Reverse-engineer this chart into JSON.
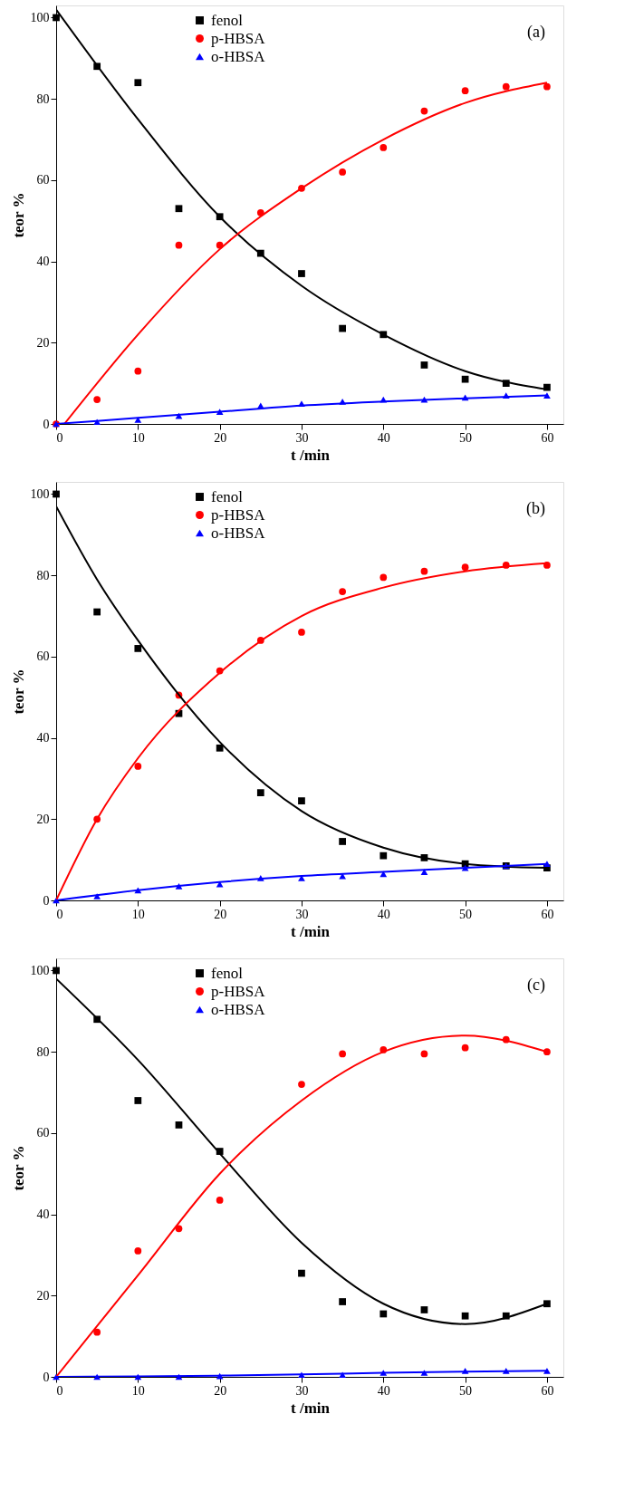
{
  "chart_data": [
    {
      "type": "scatter",
      "xlabel": "t /min",
      "ylabel": "teor  %",
      "annotations": [
        "(a)"
      ],
      "xlim": [
        0,
        62
      ],
      "ylim": [
        0,
        103
      ],
      "xticks": [
        0,
        10,
        20,
        30,
        40,
        50,
        60
      ],
      "yticks": [
        0,
        20,
        40,
        60,
        80,
        100
      ],
      "grid": false,
      "legend": "top",
      "series": [
        {
          "name": "fenol",
          "type": "scatter",
          "marker": "square",
          "color": "#000000",
          "x": [
            0,
            5,
            10,
            15,
            20,
            25,
            30,
            35,
            40,
            45,
            50,
            55,
            60
          ],
          "values": [
            100,
            88,
            84,
            53,
            51,
            42,
            37,
            23.5,
            22,
            14.5,
            11,
            10,
            9
          ]
        },
        {
          "name": "p-HBSA",
          "type": "scatter",
          "marker": "circle",
          "color": "#ff0000",
          "x": [
            0,
            5,
            10,
            15,
            20,
            25,
            30,
            35,
            40,
            45,
            50,
            55,
            60
          ],
          "values": [
            0,
            6,
            13,
            44,
            44,
            52,
            58,
            62,
            68,
            77,
            82,
            83,
            83
          ]
        },
        {
          "name": "o-HBSA",
          "type": "scatter",
          "marker": "triangle",
          "color": "#0000ff",
          "x": [
            0,
            5,
            10,
            15,
            20,
            25,
            30,
            35,
            40,
            45,
            50,
            55,
            60
          ],
          "values": [
            0,
            0.5,
            1,
            2,
            3,
            4.5,
            5,
            5.5,
            6,
            6,
            6.5,
            7,
            7
          ]
        },
        {
          "type": "line",
          "color": "#000000",
          "x": [
            0,
            10,
            20,
            30,
            40,
            50,
            60
          ],
          "values": [
            102,
            75,
            51,
            34,
            22,
            13,
            8.5
          ]
        },
        {
          "type": "line",
          "color": "#ff0000",
          "x": [
            1,
            10,
            20,
            30,
            40,
            50,
            60
          ],
          "values": [
            0,
            22,
            43,
            58,
            70,
            79,
            84
          ]
        },
        {
          "type": "line",
          "color": "#0000ff",
          "x": [
            0,
            10,
            20,
            30,
            40,
            50,
            60
          ],
          "values": [
            0,
            1.5,
            3,
            4.5,
            5.5,
            6.3,
            7
          ]
        }
      ]
    },
    {
      "type": "scatter",
      "xlabel": "t /min",
      "ylabel": "teor  %",
      "annotations": [
        "(b)"
      ],
      "xlim": [
        0,
        62
      ],
      "ylim": [
        0,
        103
      ],
      "xticks": [
        0,
        10,
        20,
        30,
        40,
        50,
        60
      ],
      "yticks": [
        0,
        20,
        40,
        60,
        80,
        100
      ],
      "grid": false,
      "legend": "top",
      "series": [
        {
          "name": "fenol",
          "type": "scatter",
          "marker": "square",
          "color": "#000000",
          "x": [
            0,
            5,
            10,
            15,
            20,
            25,
            30,
            35,
            40,
            45,
            50,
            55,
            60
          ],
          "values": [
            100,
            71,
            62,
            46,
            37.5,
            26.5,
            24.5,
            14.5,
            11,
            10.5,
            9,
            8.5,
            8
          ]
        },
        {
          "name": "p-HBSA",
          "type": "scatter",
          "marker": "circle",
          "color": "#ff0000",
          "x": [
            5,
            10,
            15,
            20,
            25,
            30,
            35,
            40,
            45,
            50,
            55,
            60
          ],
          "values": [
            20,
            33,
            50.5,
            56.5,
            64,
            66,
            76,
            79.5,
            81,
            82,
            82.5,
            82.5
          ]
        },
        {
          "name": "o-HBSA",
          "type": "scatter",
          "marker": "triangle",
          "color": "#0000ff",
          "x": [
            0,
            5,
            10,
            15,
            20,
            25,
            30,
            35,
            40,
            45,
            50,
            55,
            60
          ],
          "values": [
            0,
            1,
            2.5,
            3.5,
            4,
            5.5,
            5.5,
            6,
            6.5,
            7,
            8,
            8.5,
            9
          ]
        },
        {
          "type": "line",
          "color": "#000000",
          "x": [
            0,
            5,
            10,
            20,
            30,
            40,
            50,
            60
          ],
          "values": [
            97,
            79,
            64,
            39,
            22,
            13,
            9,
            8
          ]
        },
        {
          "type": "line",
          "color": "#ff0000",
          "x": [
            0,
            5,
            10,
            20,
            30,
            40,
            50,
            60
          ],
          "values": [
            0,
            20,
            35,
            56,
            70,
            77,
            81,
            83
          ]
        },
        {
          "type": "line",
          "color": "#0000ff",
          "x": [
            0,
            10,
            20,
            30,
            40,
            50,
            60
          ],
          "values": [
            0,
            2.5,
            4.5,
            6,
            7,
            8,
            9
          ]
        }
      ]
    },
    {
      "type": "scatter",
      "xlabel": "t /min",
      "ylabel": "teor  %",
      "annotations": [
        "(c)"
      ],
      "xlim": [
        0,
        62
      ],
      "ylim": [
        0,
        103
      ],
      "xticks": [
        0,
        10,
        20,
        30,
        40,
        50,
        60
      ],
      "yticks": [
        0,
        20,
        40,
        60,
        80,
        100
      ],
      "grid": false,
      "legend": "top",
      "series": [
        {
          "name": "fenol",
          "type": "scatter",
          "marker": "square",
          "color": "#000000",
          "x": [
            0,
            5,
            10,
            15,
            20,
            30,
            35,
            40,
            45,
            50,
            55,
            60
          ],
          "values": [
            100,
            88,
            68,
            62,
            55.5,
            25.5,
            18.5,
            15.5,
            16.5,
            15,
            15,
            18
          ]
        },
        {
          "name": "p-HBSA",
          "type": "scatter",
          "marker": "circle",
          "color": "#ff0000",
          "x": [
            5,
            10,
            15,
            20,
            30,
            35,
            40,
            45,
            50,
            55,
            60
          ],
          "values": [
            11,
            31,
            36.5,
            43.5,
            72,
            79.5,
            80.5,
            79.5,
            81,
            83,
            80
          ]
        },
        {
          "name": "o-HBSA",
          "type": "scatter",
          "marker": "triangle",
          "color": "#0000ff",
          "x": [
            0,
            5,
            10,
            15,
            20,
            30,
            35,
            40,
            45,
            50,
            55,
            60
          ],
          "values": [
            0,
            0,
            0,
            0,
            0.2,
            0.5,
            0.5,
            1,
            1,
            1.5,
            1.5,
            1.5
          ]
        },
        {
          "type": "line",
          "color": "#000000",
          "x": [
            0,
            10,
            20,
            30,
            40,
            50,
            60
          ],
          "values": [
            98,
            78,
            55,
            33,
            18,
            13,
            18
          ]
        },
        {
          "type": "line",
          "color": "#ff0000",
          "x": [
            0,
            10,
            20,
            30,
            40,
            50,
            60
          ],
          "values": [
            0,
            25,
            50,
            68,
            80,
            84,
            80
          ]
        },
        {
          "type": "line",
          "color": "#0000ff",
          "x": [
            0,
            10,
            20,
            30,
            40,
            50,
            60
          ],
          "values": [
            0,
            0.1,
            0.3,
            0.6,
            1,
            1.3,
            1.5
          ]
        }
      ]
    }
  ]
}
